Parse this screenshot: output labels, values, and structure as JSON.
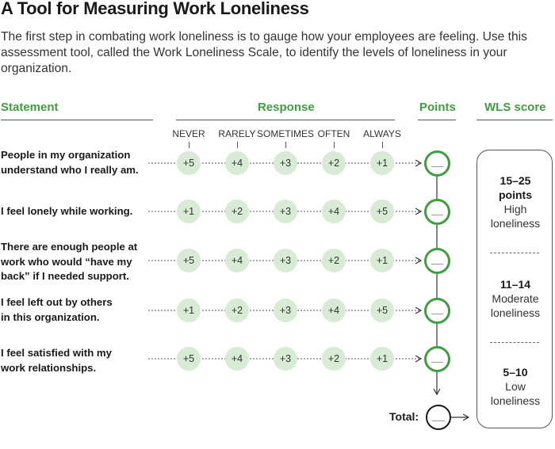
{
  "title": "A Tool for Measuring Work Loneliness",
  "intro": "The first step in combating work loneliness is to gauge how your employees are feeling. Use this assessment tool, called the Work Loneliness Scale, to identify the levels of loneliness in your organization.",
  "columns": {
    "statement": "Statement",
    "response": "Response",
    "points": "Points",
    "wls_score": "WLS score"
  },
  "response_labels": [
    "NEVER",
    "RARELY",
    "SOMETIMES",
    "OFTEN",
    "ALWAYS"
  ],
  "statements": [
    {
      "lines": [
        "People in my organization",
        "understand who I really am."
      ],
      "scores": [
        "+5",
        "+4",
        "+3",
        "+2",
        "+1"
      ]
    },
    {
      "lines": [
        "I feel lonely while working."
      ],
      "scores": [
        "+1",
        "+2",
        "+3",
        "+4",
        "+5"
      ]
    },
    {
      "lines": [
        "There are enough people at",
        "work who would “have my",
        "back” if I needed support."
      ],
      "scores": [
        "+5",
        "+4",
        "+3",
        "+2",
        "+1"
      ]
    },
    {
      "lines": [
        "I feel left out by others",
        "in this organization."
      ],
      "scores": [
        "+1",
        "+2",
        "+3",
        "+4",
        "+5"
      ]
    },
    {
      "lines": [
        "I feel satisfied with my",
        "work relationships."
      ],
      "scores": [
        "+5",
        "+4",
        "+3",
        "+2",
        "+1"
      ]
    }
  ],
  "total_label": "Total:",
  "wls_bands": [
    {
      "points": [
        "15–25",
        "points"
      ],
      "level": [
        "High",
        "loneliness"
      ]
    },
    {
      "points": [
        "11–14"
      ],
      "level": [
        "Moderate",
        "loneliness"
      ]
    },
    {
      "points": [
        "5–10"
      ],
      "level": [
        "Low",
        "loneliness"
      ]
    }
  ],
  "colors": {
    "accent": "#3f9e3f",
    "dot_fill": "#d7ebd5"
  }
}
